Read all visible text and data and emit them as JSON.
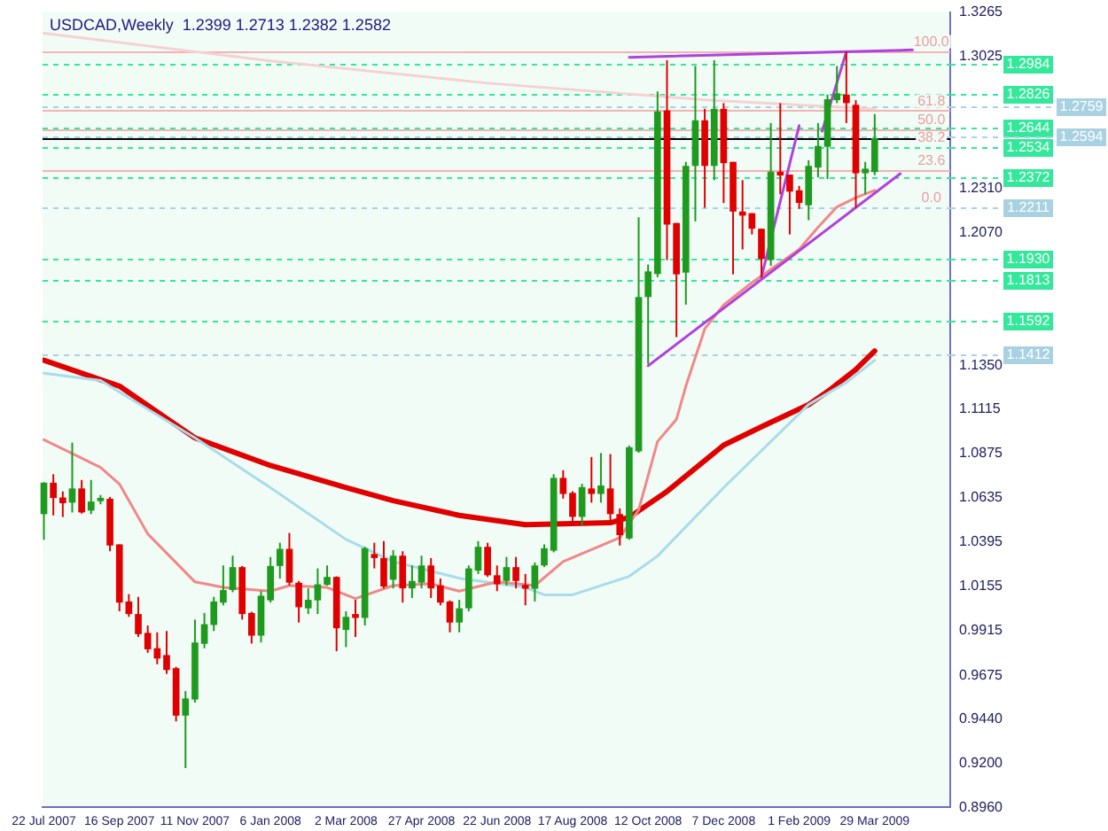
{
  "chart_data": {
    "type": "candlestick",
    "title": "USDCAD,Weekly  1.2399 1.2713 1.2382 1.2582",
    "x": [
      "2007-07-22",
      "2007-07-29",
      "2007-08-05",
      "2007-08-12",
      "2007-08-19",
      "2007-08-26",
      "2007-09-02",
      "2007-09-09",
      "2007-09-16",
      "2007-09-23",
      "2007-09-30",
      "2007-10-07",
      "2007-10-14",
      "2007-10-21",
      "2007-10-28",
      "2007-11-04",
      "2007-11-11",
      "2007-11-18",
      "2007-11-25",
      "2007-12-02",
      "2007-12-09",
      "2007-12-16",
      "2007-12-23",
      "2007-12-30",
      "2008-01-06",
      "2008-01-13",
      "2008-01-20",
      "2008-01-27",
      "2008-02-03",
      "2008-02-10",
      "2008-02-17",
      "2008-02-24",
      "2008-03-02",
      "2008-03-09",
      "2008-03-16",
      "2008-03-23",
      "2008-03-30",
      "2008-04-06",
      "2008-04-13",
      "2008-04-20",
      "2008-04-27",
      "2008-05-04",
      "2008-05-11",
      "2008-05-18",
      "2008-05-25",
      "2008-06-01",
      "2008-06-08",
      "2008-06-15",
      "2008-06-22",
      "2008-06-29",
      "2008-07-06",
      "2008-07-13",
      "2008-07-20",
      "2008-07-27",
      "2008-08-03",
      "2008-08-10",
      "2008-08-17",
      "2008-08-24",
      "2008-08-31",
      "2008-09-07",
      "2008-09-14",
      "2008-09-21",
      "2008-09-28",
      "2008-10-05",
      "2008-10-12",
      "2008-10-19",
      "2008-10-26",
      "2008-11-02",
      "2008-11-09",
      "2008-11-16",
      "2008-11-23",
      "2008-11-30",
      "2008-12-07",
      "2008-12-14",
      "2008-12-21",
      "2008-12-28",
      "2009-01-04",
      "2009-01-11",
      "2009-01-18",
      "2009-01-25",
      "2009-02-01",
      "2009-02-08",
      "2009-02-15",
      "2009-02-22",
      "2009-03-01",
      "2009-03-08",
      "2009-03-15",
      "2009-03-22",
      "2009-03-29"
    ],
    "ohlc": [
      [
        1.0547,
        1.072,
        1.0408,
        1.0717
      ],
      [
        1.0717,
        1.0763,
        1.054,
        1.0634
      ],
      [
        1.0637,
        1.067,
        1.0531,
        1.0606
      ],
      [
        1.0609,
        1.0934,
        1.0556,
        1.0686
      ],
      [
        1.0686,
        1.0732,
        1.055,
        1.0556
      ],
      [
        1.0566,
        1.0732,
        1.0547,
        1.0615
      ],
      [
        1.0617,
        1.065,
        1.06,
        1.0635
      ],
      [
        1.063,
        1.064,
        1.0346,
        1.0377
      ],
      [
        1.0383,
        1.0383,
        1.0021,
        1.0068
      ],
      [
        1.0074,
        1.0114,
        0.9991,
        1.0006
      ],
      [
        1.0006,
        1.0099,
        0.9882,
        0.9897
      ],
      [
        0.9904,
        0.9944,
        0.9796,
        0.9815
      ],
      [
        0.9821,
        0.9907,
        0.9734,
        0.9765
      ],
      [
        0.9784,
        0.9914,
        0.9682,
        0.9703
      ],
      [
        0.9713,
        0.972,
        0.9425,
        0.9456
      ],
      [
        0.9456,
        0.9589,
        0.9172,
        0.9549
      ],
      [
        0.9543,
        0.9976,
        0.9527,
        0.9852
      ],
      [
        0.9845,
        1.0012,
        0.9821,
        0.9951
      ],
      [
        0.9947,
        1.0099,
        0.9914,
        1.0074
      ],
      [
        1.0068,
        1.0269,
        1.0053,
        1.0136
      ],
      [
        1.0136,
        1.0322,
        1.0124,
        1.026
      ],
      [
        1.026,
        1.0266,
        0.9976,
        1.0006
      ],
      [
        1.0012,
        1.0018,
        0.9846,
        0.9889
      ],
      [
        0.9889,
        1.013,
        0.9852,
        1.0105
      ],
      [
        1.008,
        1.0315,
        1.0068,
        1.0266
      ],
      [
        1.0266,
        1.0392,
        1.0198,
        1.0359
      ],
      [
        1.0359,
        1.0445,
        1.0161,
        1.0176
      ],
      [
        1.0176,
        1.0185,
        0.996,
        1.0043
      ],
      [
        1.0037,
        1.0145,
        1.0006,
        1.0083
      ],
      [
        1.008,
        1.0253,
        1.0006,
        1.0167
      ],
      [
        1.0164,
        1.0269,
        1.016,
        1.0207
      ],
      [
        1.0207,
        1.021,
        0.9805,
        0.9929
      ],
      [
        0.992,
        1.0021,
        0.9827,
        0.9991
      ],
      [
        1.0006,
        1.0083,
        0.9882,
        0.9985
      ],
      [
        0.9985,
        1.037,
        0.9944,
        1.0362
      ],
      [
        1.0331,
        1.0392,
        1.0253,
        1.0309
      ],
      [
        1.0309,
        1.0401,
        1.0145,
        1.0155
      ],
      [
        1.0192,
        1.0352,
        1.0145,
        1.0322
      ],
      [
        1.0322,
        1.0346,
        1.0068,
        1.0145
      ],
      [
        1.0145,
        1.0269,
        1.0093,
        1.0185
      ],
      [
        1.0176,
        1.0322,
        1.0145,
        1.0269
      ],
      [
        1.0269,
        1.0309,
        1.0093,
        1.0145
      ],
      [
        1.0161,
        1.0198,
        1.0053,
        1.0068
      ],
      [
        1.0074,
        1.008,
        0.9907,
        0.996
      ],
      [
        0.996,
        1.0083,
        0.9907,
        1.0037
      ],
      [
        1.0037,
        1.0269,
        1.0021,
        1.0253
      ],
      [
        1.0241,
        1.0401,
        1.0223,
        1.037
      ],
      [
        1.037,
        1.0392,
        1.0207,
        1.0216
      ],
      [
        1.0216,
        1.0269,
        1.013,
        1.0167
      ],
      [
        1.0185,
        1.0315,
        1.0161,
        1.026
      ],
      [
        1.026,
        1.0315,
        1.0145,
        1.0185
      ],
      [
        1.0164,
        1.0223,
        1.0053,
        1.0143
      ],
      [
        1.0143,
        1.0285,
        1.0074,
        1.0269
      ],
      [
        1.0269,
        1.0383,
        1.026,
        1.0362
      ],
      [
        1.0349,
        1.0763,
        1.034,
        1.0743
      ],
      [
        1.0743,
        1.0785,
        1.0631,
        1.0656
      ],
      [
        1.0662,
        1.0671,
        1.0494,
        1.0532
      ],
      [
        1.0532,
        1.0711,
        1.0485,
        1.0693
      ],
      [
        1.0686,
        1.0856,
        1.0609,
        1.0656
      ],
      [
        1.0656,
        1.0878,
        1.0609,
        1.0702
      ],
      [
        1.0686,
        1.0872,
        1.0507,
        1.0547
      ],
      [
        1.0547,
        1.0578,
        1.0377,
        1.0433
      ],
      [
        1.0415,
        1.0918,
        1.0408,
        1.0909
      ],
      [
        1.0887,
        1.2154,
        1.088,
        1.1722
      ],
      [
        1.1722,
        1.1898,
        1.136,
        1.1861
      ],
      [
        1.1847,
        1.2835,
        1.183,
        1.2727
      ],
      [
        1.2732,
        1.3004,
        1.1922,
        1.2114
      ],
      [
        1.2123,
        1.2123,
        1.1505,
        1.1845
      ],
      [
        1.1854,
        1.2454,
        1.1681,
        1.2432
      ],
      [
        1.2432,
        1.2973,
        1.2132,
        1.2679
      ],
      [
        1.2679,
        1.2741,
        1.2206,
        1.2432
      ],
      [
        1.2432,
        1.3004,
        1.2355,
        1.2741
      ],
      [
        1.2741,
        1.2772,
        1.2231,
        1.2447
      ],
      [
        1.2454,
        1.2454,
        1.1845,
        1.2185
      ],
      [
        1.2185,
        1.2355,
        1.198,
        1.2163
      ],
      [
        1.2176,
        1.2176,
        1.2061,
        1.2092
      ],
      [
        1.2092,
        1.2092,
        1.183,
        1.1928
      ],
      [
        1.1922,
        1.2664,
        1.1891,
        1.2401
      ],
      [
        1.2401,
        1.2772,
        1.2279,
        1.238
      ],
      [
        1.2385,
        1.2385,
        1.2061,
        1.2293
      ],
      [
        1.23,
        1.2324,
        1.22,
        1.2232
      ],
      [
        1.2219,
        1.2463,
        1.2138,
        1.2432
      ],
      [
        1.2423,
        1.2664,
        1.237,
        1.254
      ],
      [
        1.2536,
        1.2818,
        1.2361,
        1.2793
      ],
      [
        1.2788,
        1.2973,
        1.2772,
        1.2825
      ],
      [
        1.2818,
        1.305,
        1.2664,
        1.2772
      ],
      [
        1.2763,
        1.2788,
        1.2206,
        1.2392
      ],
      [
        1.2392,
        1.2454,
        1.2279,
        1.2417
      ],
      [
        1.2399,
        1.2713,
        1.2382,
        1.2582
      ]
    ],
    "colors": [
      "#1e9a1e",
      "#e00000",
      "#e00000",
      "#1e9a1e",
      "#e00000",
      "#1e9a1e",
      "#1e9a1e",
      "#e00000",
      "#e00000",
      "#e00000",
      "#e00000",
      "#e00000",
      "#e00000",
      "#e00000",
      "#e00000",
      "#1e9a1e",
      "#1e9a1e",
      "#1e9a1e",
      "#1e9a1e",
      "#1e9a1e",
      "#1e9a1e",
      "#e00000",
      "#e00000",
      "#1e9a1e",
      "#1e9a1e",
      "#1e9a1e",
      "#e00000",
      "#e00000",
      "#1e9a1e",
      "#1e9a1e",
      "#1e9a1e",
      "#e00000",
      "#1e9a1e",
      "#e00000",
      "#1e9a1e",
      "#e00000",
      "#e00000",
      "#1e9a1e",
      "#e00000",
      "#1e9a1e",
      "#1e9a1e",
      "#e00000",
      "#e00000",
      "#e00000",
      "#1e9a1e",
      "#1e9a1e",
      "#1e9a1e",
      "#e00000",
      "#e00000",
      "#1e9a1e",
      "#e00000",
      "#e00000",
      "#1e9a1e",
      "#1e9a1e",
      "#1e9a1e",
      "#e00000",
      "#e00000",
      "#1e9a1e",
      "#e00000",
      "#1e9a1e",
      "#e00000",
      "#e00000",
      "#1e9a1e",
      "#1e9a1e",
      "#1e9a1e",
      "#1e9a1e",
      "#e00000",
      "#e00000",
      "#1e9a1e",
      "#1e9a1e",
      "#e00000",
      "#1e9a1e",
      "#e00000",
      "#e00000",
      "#e00000",
      "#e00000",
      "#e00000",
      "#1e9a1e",
      "#e00000",
      "#e00000",
      "#e00000",
      "#1e9a1e",
      "#1e9a1e",
      "#1e9a1e",
      "#1e9a1e",
      "#e00000",
      "#e00000",
      "#1e9a1e",
      "#1e9a1e"
    ],
    "series": [
      {
        "type": "line",
        "color": "#e00000",
        "x": [
          "2007-07-22",
          "2007-09-16",
          "2007-11-11",
          "2008-01-06",
          "2008-03-02",
          "2008-04-06",
          "2008-05-25",
          "2008-07-13",
          "2008-09-14",
          "2008-09-28",
          "2008-10-26",
          "2008-12-07",
          "2009-01-04",
          "2009-02-08",
          "2009-02-22",
          "2009-03-15",
          "2009-03-29"
        ],
        "values": [
          1.138,
          1.124,
          1.096,
          1.081,
          1.069,
          1.062,
          1.054,
          1.049,
          1.05,
          1.053,
          1.067,
          1.092,
          1.102,
          1.114,
          1.121,
          1.133,
          1.143
        ]
      },
      {
        "type": "line",
        "color": "#a8dcea",
        "x": [
          "2007-07-22",
          "2007-09-02",
          "2007-11-11",
          "2008-01-06",
          "2008-03-02",
          "2008-04-06",
          "2008-05-25",
          "2008-07-13",
          "2008-07-27",
          "2008-08-17",
          "2008-09-28",
          "2008-10-19",
          "2008-12-07",
          "2009-02-08",
          "2009-03-08",
          "2009-03-29"
        ],
        "values": [
          1.131,
          1.127,
          1.096,
          1.069,
          1.041,
          1.029,
          1.02,
          1.015,
          1.011,
          1.011,
          1.021,
          1.032,
          1.069,
          1.114,
          1.126,
          1.138
        ]
      },
      {
        "type": "line",
        "color": "#f08888",
        "x": [
          "2007-07-22",
          "2007-09-02",
          "2007-09-16",
          "2007-10-07",
          "2007-11-11",
          "2007-12-02",
          "2008-01-06",
          "2008-01-20",
          "2008-02-17",
          "2008-03-09",
          "2008-04-06",
          "2008-05-04",
          "2008-05-25",
          "2008-06-22",
          "2008-07-20",
          "2008-08-10",
          "2008-09-21",
          "2008-10-05",
          "2008-10-19",
          "2008-11-02",
          "2008-11-09",
          "2008-11-23",
          "2008-12-07",
          "2008-12-28",
          "2009-02-01",
          "2009-02-15",
          "2009-03-01",
          "2009-03-15",
          "2009-03-29"
        ],
        "values": [
          1.095,
          1.08,
          1.071,
          1.044,
          1.018,
          1.015,
          1.013,
          1.016,
          1.015,
          1.009,
          1.016,
          1.017,
          1.013,
          1.018,
          1.016,
          1.029,
          1.042,
          1.057,
          1.094,
          1.106,
          1.124,
          1.155,
          1.168,
          1.18,
          1.198,
          1.21,
          1.221,
          1.226,
          1.23
        ]
      },
      {
        "type": "line",
        "color": "#f5d2d2",
        "x": [
          "2007-07-22",
          "2008-01-06",
          "2008-06-15",
          "2008-11-23",
          "2009-03-29"
        ],
        "values": [
          1.315,
          1.3,
          1.288,
          1.279,
          1.274
        ]
      },
      {
        "type": "line",
        "color": "#b040e0",
        "x": [
          "2008-10-12",
          "2009-04-17"
        ],
        "values": [
          1.135,
          1.239
        ]
      },
      {
        "type": "line",
        "color": "#b040e0",
        "x": [
          "2008-09-28",
          "2009-04-26"
        ],
        "values": [
          1.302,
          1.306
        ]
      },
      {
        "type": "line",
        "color": "#b040e0",
        "x": [
          "2009-01-04",
          "2009-02-01"
        ],
        "values": [
          1.183,
          1.265
        ]
      },
      {
        "type": "line",
        "color": "#b040e0",
        "x": [
          "2009-02-18",
          "2009-03-08"
        ],
        "values": [
          1.262,
          1.305
        ]
      }
    ],
    "ref_lines": [
      {
        "axis": "y",
        "value": 1.2984,
        "label": "1.2984",
        "color": "#33e89a",
        "line_style": "dashed"
      },
      {
        "axis": "y",
        "value": 1.2826,
        "label": "1.2826",
        "color": "#33e89a",
        "line_style": "dashed"
      },
      {
        "axis": "y",
        "value": 1.2644,
        "label": "1.2644",
        "color": "#33e89a",
        "line_style": "dashed"
      },
      {
        "axis": "y",
        "value": 1.2534,
        "label": "1.2534",
        "color": "#33e89a",
        "line_style": "dashed"
      },
      {
        "axis": "y",
        "value": 1.2372,
        "label": "1.2372",
        "color": "#33e89a",
        "line_style": "dashed"
      },
      {
        "axis": "y",
        "value": 1.193,
        "label": "1.1930",
        "color": "#33e89a",
        "line_style": "dashed"
      },
      {
        "axis": "y",
        "value": 1.1813,
        "label": "1.1813",
        "color": "#33e89a",
        "line_style": "dashed"
      },
      {
        "axis": "y",
        "value": 1.1592,
        "label": "1.1592",
        "color": "#33e89a",
        "line_style": "dashed"
      },
      {
        "axis": "y",
        "value": 1.2759,
        "label": "1.2759",
        "color": "#a8d2e2",
        "line_style": "dashed"
      },
      {
        "axis": "y",
        "value": 1.2594,
        "label": "1.2594",
        "color": "#a8d2e2",
        "line_style": "dashed"
      },
      {
        "axis": "y",
        "value": 1.2211,
        "label": "1.2211",
        "color": "#a8d2e2",
        "line_style": "dashed"
      },
      {
        "axis": "y",
        "value": 1.1412,
        "label": "1.1412",
        "color": "#a8d2e2",
        "line_style": "dashed"
      },
      {
        "axis": "y",
        "value": 1.2582,
        "color": "#000000",
        "line_style": "solid"
      },
      {
        "axis": "y",
        "value": 1.3055,
        "color": "#f0b4b4",
        "line_style": "solid"
      },
      {
        "axis": "y",
        "value": 1.2733,
        "color": "#f0b4b4",
        "line_style": "solid"
      },
      {
        "axis": "y",
        "value": 1.2633,
        "color": "#f0b4b4",
        "line_style": "solid"
      },
      {
        "axis": "y",
        "value": 1.241,
        "color": "#f0b4b4",
        "line_style": "solid"
      }
    ],
    "annotations": [
      {
        "text": "100.0",
        "x": "2009-05-10",
        "y": 1.3055
      },
      {
        "text": "61.8",
        "x": "2009-05-10",
        "y": 1.2733
      },
      {
        "text": "50.0",
        "x": "2009-05-10",
        "y": 1.2633
      },
      {
        "text": "38.2",
        "x": "2009-05-10",
        "y": 1.2534
      },
      {
        "text": "23.6",
        "x": "2009-05-10",
        "y": 1.241
      },
      {
        "text": "0.0",
        "x": "2009-05-10",
        "y": 1.2211
      }
    ],
    "xlim": [
      "2007-07-21",
      "2009-05-24"
    ],
    "xticks": [
      {
        "value": "2007-07-22",
        "label": "22 Jul 2007"
      },
      {
        "value": "2007-09-16",
        "label": "16 Sep 2007"
      },
      {
        "value": "2007-11-11",
        "label": "11 Nov 2007"
      },
      {
        "value": "2008-01-06",
        "label": "6 Jan 2008"
      },
      {
        "value": "2008-03-02",
        "label": "2 Mar 2008"
      },
      {
        "value": "2008-04-27",
        "label": "27 Apr 2008"
      },
      {
        "value": "2008-06-22",
        "label": "22 Jun 2008"
      },
      {
        "value": "2008-08-17",
        "label": "17 Aug 2008"
      },
      {
        "value": "2008-10-12",
        "label": "12 Oct 2008"
      },
      {
        "value": "2008-12-07",
        "label": "7 Dec 2008"
      },
      {
        "value": "2009-02-01",
        "label": "1 Feb 2009"
      },
      {
        "value": "2009-03-29",
        "label": "29 Mar 2009"
      }
    ],
    "ylim": [
      0.896,
      1.3265
    ],
    "yticks": [
      {
        "value": 1.3265,
        "label": "1.3265"
      },
      {
        "value": 1.3025,
        "label": "1.3025"
      },
      {
        "value": 1.231,
        "label": "1.2310"
      },
      {
        "value": 1.207,
        "label": "1.2070"
      },
      {
        "value": 1.135,
        "label": "1.1350"
      },
      {
        "value": 1.1115,
        "label": "1.1115"
      },
      {
        "value": 1.0875,
        "label": "1.0875"
      },
      {
        "value": 1.0635,
        "label": "1.0635"
      },
      {
        "value": 1.0395,
        "label": "1.0395"
      },
      {
        "value": 1.0155,
        "label": "1.0155"
      },
      {
        "value": 0.9915,
        "label": "0.9915"
      },
      {
        "value": 0.9675,
        "label": "0.9675"
      },
      {
        "value": 0.944,
        "label": "0.9440"
      },
      {
        "value": 0.92,
        "label": "0.9200"
      },
      {
        "value": 0.896,
        "label": "0.8960"
      }
    ]
  }
}
